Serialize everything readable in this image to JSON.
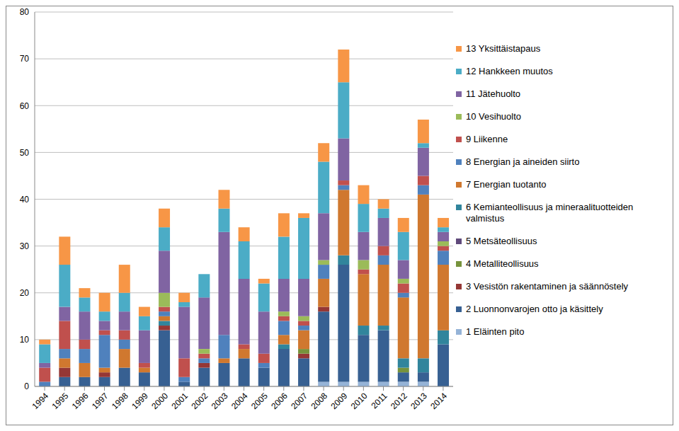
{
  "chart_data": {
    "type": "bar",
    "stacked": true,
    "grid": true,
    "legend": "right",
    "categories": [
      "1994",
      "1995",
      "1996",
      "1997",
      "1998",
      "1999",
      "2000",
      "2001",
      "2002",
      "2003",
      "2004",
      "2005",
      "2006",
      "2007",
      "2008",
      "2009",
      "2010",
      "2011",
      "2012",
      "2013",
      "2014"
    ],
    "ylim": [
      0,
      80
    ],
    "yticks": [
      0,
      10,
      20,
      30,
      40,
      50,
      60,
      70,
      80
    ],
    "series": [
      {
        "name": "1 Eläinten pito",
        "color": "#95B3D7",
        "values": [
          0,
          0,
          0,
          0,
          0,
          0,
          0,
          0,
          0,
          0,
          0,
          0,
          0,
          0,
          1,
          1,
          1,
          1,
          1,
          1,
          0
        ]
      },
      {
        "name": "2 Luonnonvarojen otto ja käsittely",
        "color": "#376092",
        "values": [
          0,
          2,
          2,
          2,
          4,
          3,
          12,
          1,
          4,
          5,
          6,
          4,
          8,
          6,
          15,
          25,
          10,
          11,
          2,
          2,
          9
        ]
      },
      {
        "name": "3 Vesistön rakentaminen ja säännöstely",
        "color": "#953735",
        "values": [
          0,
          2,
          0,
          1,
          0,
          0,
          1,
          0,
          1,
          0,
          0,
          0,
          0,
          1,
          1,
          0,
          0,
          0,
          0,
          0,
          0
        ]
      },
      {
        "name": "4 Metalliteollisuus",
        "color": "#77933C",
        "values": [
          0,
          0,
          0,
          0,
          0,
          0,
          0,
          0,
          0,
          0,
          0,
          0,
          0,
          1,
          0,
          0,
          0,
          0,
          1,
          0,
          0
        ]
      },
      {
        "name": "5 Metsäteollisuus",
        "color": "#604A7B",
        "values": [
          0,
          0,
          0,
          0,
          0,
          0,
          0,
          0,
          0,
          0,
          0,
          0,
          0,
          0,
          0,
          0,
          0,
          0,
          0,
          0,
          0
        ]
      },
      {
        "name": "6 Kemianteollisuus ja mineraalituotteiden valmistus",
        "color": "#31859C",
        "values": [
          0,
          0,
          0,
          0,
          0,
          0,
          1,
          0,
          0,
          0,
          0,
          0,
          1,
          0,
          0,
          2,
          2,
          1,
          2,
          3,
          3
        ]
      },
      {
        "name": "7 Energian tuotanto",
        "color": "#D0782F",
        "values": [
          0,
          2,
          3,
          1,
          4,
          1,
          1,
          0,
          0,
          1,
          2,
          0,
          2,
          4,
          6,
          14,
          11,
          13,
          13,
          35,
          14
        ]
      },
      {
        "name": "8 Energian ja aineiden siirto",
        "color": "#4F81BD",
        "values": [
          1,
          2,
          3,
          7,
          2,
          0,
          1,
          1,
          1,
          5,
          0,
          1,
          3,
          1,
          3,
          1,
          0,
          2,
          1,
          2,
          3
        ]
      },
      {
        "name": "9 Liikenne",
        "color": "#C0504D",
        "values": [
          3,
          6,
          2,
          1,
          2,
          1,
          1,
          4,
          1,
          0,
          1,
          2,
          1,
          1,
          0,
          1,
          1,
          2,
          2,
          2,
          1
        ]
      },
      {
        "name": "10 Vesihuolto",
        "color": "#9BBB59",
        "values": [
          0,
          0,
          0,
          0,
          0,
          0,
          3,
          0,
          1,
          0,
          0,
          0,
          1,
          1,
          1,
          0,
          2,
          0,
          1,
          0,
          1
        ]
      },
      {
        "name": "11 Jätehuolto",
        "color": "#8064A2",
        "values": [
          1,
          3,
          6,
          2,
          4,
          7,
          9,
          11,
          11,
          22,
          14,
          9,
          7,
          8,
          10,
          9,
          6,
          6,
          4,
          6,
          2
        ]
      },
      {
        "name": "12 Hankkeen muutos",
        "color": "#4BACC6",
        "values": [
          4,
          9,
          3,
          2,
          4,
          3,
          5,
          1,
          5,
          5,
          8,
          6,
          9,
          13,
          11,
          12,
          6,
          2,
          6,
          1,
          1
        ]
      },
      {
        "name": "13 Yksittäistapaus",
        "color": "#F79646",
        "values": [
          1,
          6,
          2,
          4,
          6,
          2,
          4,
          2,
          0,
          4,
          3,
          1,
          5,
          1,
          4,
          7,
          4,
          2,
          3,
          5,
          2
        ]
      }
    ]
  }
}
